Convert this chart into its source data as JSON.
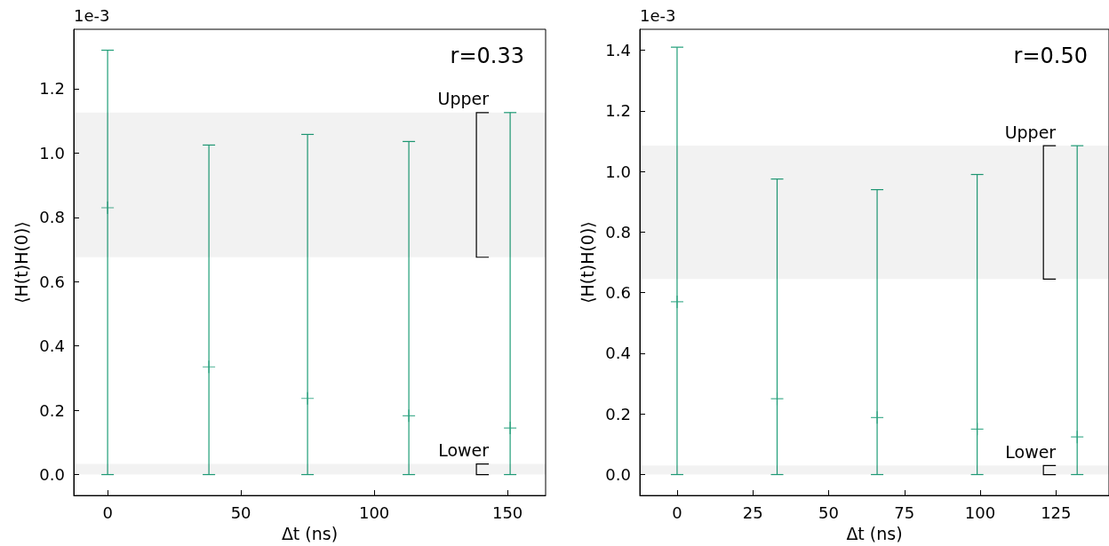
{
  "chart_data": [
    {
      "type": "scatter",
      "xlabel": "Δt (ns)",
      "ylabel": "⟨H(t)H(0)⟩",
      "annotations": [
        "1e-3",
        "r=0.33"
      ],
      "x": [
        0,
        38,
        75,
        113,
        151
      ],
      "series": [
        {
          "color": "#1f9e78",
          "values": [
            0.83,
            0.335,
            0.237,
            0.183,
            0.145
          ],
          "errors": [
            [
              0,
              1.32
            ],
            [
              0,
              1.025
            ],
            [
              0,
              1.058
            ],
            [
              0,
              1.036
            ],
            [
              0,
              1.126
            ]
          ]
        }
      ],
      "bands": [
        {
          "axis": "y",
          "from": 0.676,
          "to": 1.126,
          "label": "Upper",
          "color": "#000000"
        },
        {
          "axis": "y",
          "from": 0,
          "to": 0.033,
          "label": "Lower",
          "color": "#000000"
        }
      ],
      "marker": "cross",
      "xlim": [
        -12.7,
        164.3
      ],
      "xticks": [
        0,
        50,
        100,
        150
      ],
      "ylim": [
        -0.065,
        1.385
      ],
      "yticks": [
        {
          "value": 0,
          "label": "0.0"
        },
        {
          "value": 0.2,
          "label": "0.2"
        },
        {
          "value": 0.4,
          "label": "0.4"
        },
        {
          "value": 0.6,
          "label": "0.6"
        },
        {
          "value": 0.8,
          "label": "0.8"
        },
        {
          "value": 1,
          "label": "1.0"
        },
        {
          "value": 1.2,
          "label": "1.2"
        }
      ],
      "grid": false
    },
    {
      "type": "scatter",
      "xlabel": "Δt (ns)",
      "ylabel": "⟨H(t)H(0)⟩",
      "annotations": [
        "1e-3",
        "r=0.50"
      ],
      "x": [
        0,
        33,
        66,
        99,
        132
      ],
      "series": [
        {
          "color": "#1f9e78",
          "values": [
            0.57,
            0.25,
            0.188,
            0.15,
            0.124
          ],
          "errors": [
            [
              0,
              1.41
            ],
            [
              0,
              0.975
            ],
            [
              0,
              0.94
            ],
            [
              0,
              0.99
            ],
            [
              0,
              1.085
            ]
          ]
        }
      ],
      "bands": [
        {
          "axis": "y",
          "from": 0.645,
          "to": 1.085,
          "label": "Upper",
          "color": "#000000"
        },
        {
          "axis": "y",
          "from": 0,
          "to": 0.03,
          "label": "Lower",
          "color": "#000000"
        }
      ],
      "marker": "cross",
      "xlim": [
        -12.3,
        142.5
      ],
      "xticks": [
        0,
        25,
        50,
        75,
        100,
        125
      ],
      "ylim": [
        -0.069,
        1.469
      ],
      "yticks": [
        {
          "value": 0,
          "label": "0.0"
        },
        {
          "value": 0.2,
          "label": "0.2"
        },
        {
          "value": 0.4,
          "label": "0.4"
        },
        {
          "value": 0.6,
          "label": "0.6"
        },
        {
          "value": 0.8,
          "label": "0.8"
        },
        {
          "value": 1,
          "label": "1.0"
        },
        {
          "value": 1.2,
          "label": "1.2"
        },
        {
          "value": 1.4,
          "label": "1.4"
        }
      ],
      "grid": false
    }
  ]
}
